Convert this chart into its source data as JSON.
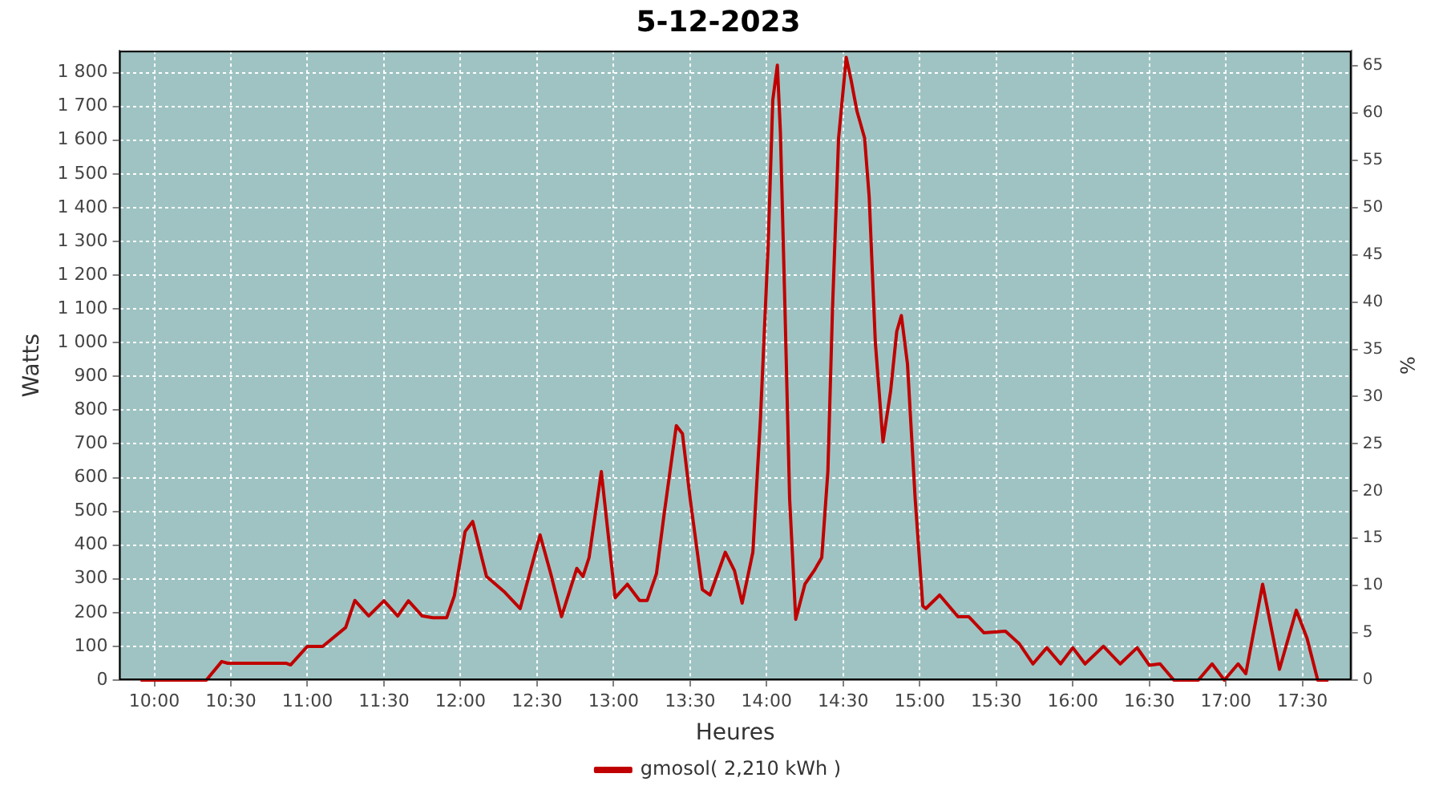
{
  "chart_data": {
    "type": "line",
    "title": "5-12-2023",
    "xlabel": "Heures",
    "ylabel": "Watts",
    "y2label": "%",
    "xlim": [
      9.77,
      17.82
    ],
    "xticks": [
      {
        "value": 10,
        "label": "10:00"
      },
      {
        "value": 10.5,
        "label": "10:30"
      },
      {
        "value": 11,
        "label": "11:00"
      },
      {
        "value": 11.5,
        "label": "11:30"
      },
      {
        "value": 12,
        "label": "12:00"
      },
      {
        "value": 12.5,
        "label": "12:30"
      },
      {
        "value": 13,
        "label": "13:00"
      },
      {
        "value": 13.5,
        "label": "13:30"
      },
      {
        "value": 14,
        "label": "14:00"
      },
      {
        "value": 14.5,
        "label": "14:30"
      },
      {
        "value": 15,
        "label": "15:00"
      },
      {
        "value": 15.5,
        "label": "15:30"
      },
      {
        "value": 16,
        "label": "16:00"
      },
      {
        "value": 16.5,
        "label": "16:30"
      },
      {
        "value": 17,
        "label": "17:00"
      },
      {
        "value": 17.5,
        "label": "17:30"
      }
    ],
    "ylim": [
      0,
      1865
    ],
    "yticks": [
      0,
      100,
      200,
      300,
      400,
      500,
      600,
      700,
      800,
      900,
      {
        "value": 1000,
        "label": "1 000"
      },
      {
        "value": 1100,
        "label": "1 100"
      },
      {
        "value": 1200,
        "label": "1 200"
      },
      {
        "value": 1300,
        "label": "1 300"
      },
      {
        "value": 1400,
        "label": "1 400"
      },
      {
        "value": 1500,
        "label": "1 500"
      },
      {
        "value": 1600,
        "label": "1 600"
      },
      {
        "value": 1700,
        "label": "1 700"
      },
      {
        "value": 1800,
        "label": "1 800"
      }
    ],
    "y2lim": [
      0,
      66.6
    ],
    "y2ticks": [
      0,
      5,
      10,
      15,
      20,
      25,
      30,
      35,
      40,
      45,
      50,
      55,
      60,
      65
    ],
    "grid": true,
    "legend": "bottom",
    "marker": "none",
    "line_style": "solid",
    "series": [
      {
        "name": "gmosol( 2,210 kWh )",
        "color": "#c00000",
        "x": [
          9.91,
          10.27,
          10.34,
          10.44,
          10.48,
          10.86,
          10.89,
          11.0,
          11.1,
          11.25,
          11.31,
          11.4,
          11.5,
          11.59,
          11.66,
          11.75,
          11.82,
          11.91,
          11.96,
          12.03,
          12.08,
          12.17,
          12.29,
          12.39,
          12.52,
          12.59,
          12.66,
          12.76,
          12.8,
          12.84,
          12.92,
          13.01,
          13.09,
          13.17,
          13.22,
          13.28,
          13.33,
          13.41,
          13.45,
          13.5,
          13.58,
          13.63,
          13.73,
          13.79,
          13.84,
          13.91,
          13.96,
          14.01,
          14.04,
          14.07,
          14.09,
          14.12,
          14.15,
          14.19,
          14.25,
          14.31,
          14.36,
          14.4,
          14.43,
          14.47,
          14.52,
          14.55,
          14.59,
          14.64,
          14.67,
          14.71,
          14.76,
          14.81,
          14.85,
          14.88,
          14.92,
          14.97,
          15.02,
          15.04,
          15.13,
          15.25,
          15.32,
          15.42,
          15.56,
          15.65,
          15.74,
          15.83,
          15.92,
          16.0,
          16.08,
          16.2,
          16.31,
          16.42,
          16.5,
          16.57,
          16.66,
          16.82,
          16.91,
          16.99,
          17.08,
          17.13,
          17.24,
          17.35,
          17.46,
          17.53,
          17.6,
          17.67
        ],
        "values": [
          0,
          0,
          0,
          55,
          50,
          50,
          45,
          100,
          100,
          156,
          236,
          190,
          235,
          190,
          235,
          190,
          185,
          185,
          250,
          440,
          470,
          307,
          260,
          212,
          430,
          315,
          188,
          331,
          307,
          363,
          618,
          244,
          284,
          236,
          236,
          315,
          491,
          754,
          730,
          539,
          268,
          252,
          379,
          324,
          228,
          379,
          778,
          1288,
          1718,
          1822,
          1622,
          1096,
          539,
          180,
          284,
          324,
          363,
          618,
          1096,
          1606,
          1845,
          1782,
          1686,
          1606,
          1431,
          1001,
          706,
          857,
          1033,
          1080,
          937,
          539,
          220,
          212,
          252,
          188,
          188,
          140,
          145,
          108,
          48,
          96,
          48,
          96,
          48,
          100,
          48,
          96,
          44,
          48,
          0,
          0,
          48,
          0,
          48,
          19,
          284,
          32,
          207,
          124,
          0,
          0
        ]
      }
    ]
  }
}
